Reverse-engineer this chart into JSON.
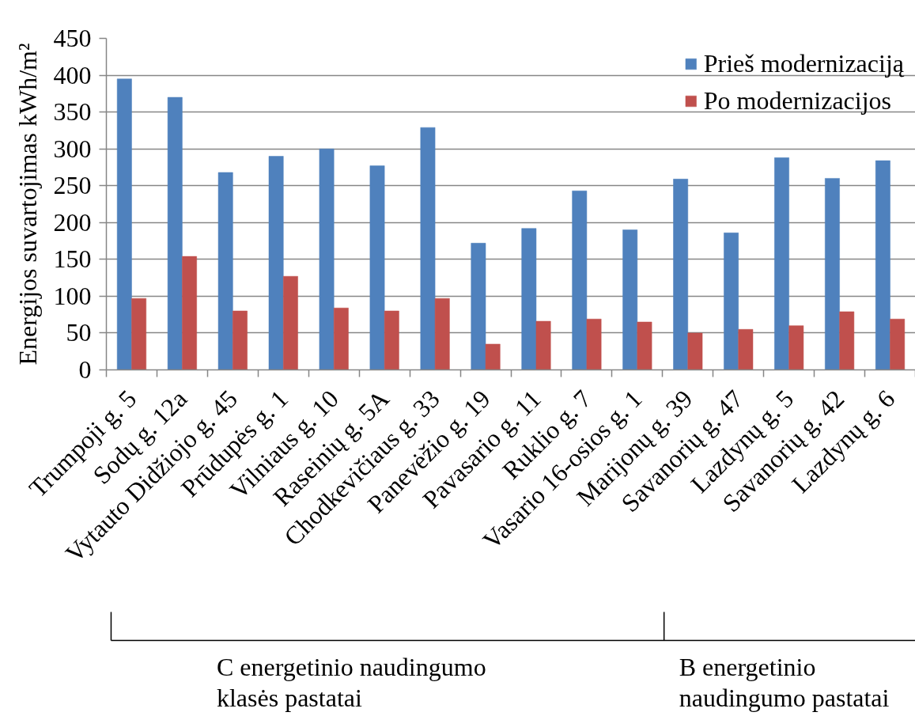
{
  "chart_data": {
    "type": "bar",
    "categories": [
      "Trumpoji g. 5",
      "Sodų g. 12a",
      "Vytauto Didžiojo g. 45",
      "Prūdupės g. 1",
      "Vilniaus g. 10",
      "Raseinių g. 5A",
      "Chodkevičiaus g. 33",
      "Panevėžio g. 19",
      "Pavasario g. 11",
      "Ruklio g. 7",
      "Vasario 16-osios g. 1",
      "Marijonų g. 39",
      "Savanorių g. 47",
      "Lazdynų g. 5",
      "Savanorių g. 42",
      "Lazdynų g. 6"
    ],
    "series": [
      {
        "name": "Prieš modernizaciją",
        "color": "#4f81bd",
        "values": [
          395,
          370,
          268,
          290,
          300,
          277,
          329,
          172,
          192,
          243,
          190,
          259,
          186,
          288,
          260,
          284
        ]
      },
      {
        "name": "Po modernizacijos",
        "color": "#c0504d",
        "values": [
          97,
          154,
          80,
          127,
          84,
          80,
          97,
          35,
          66,
          69,
          65,
          50,
          55,
          60,
          79,
          69
        ]
      }
    ],
    "ylabel": "Energijos suvartojimas kWh/m²",
    "ylim": [
      0,
      450
    ],
    "yticks": [
      0,
      50,
      100,
      150,
      200,
      250,
      300,
      350,
      400,
      450
    ],
    "grid": "y",
    "legend": "top right",
    "annotations": [
      "C energetinio naudingumo klasės pastatai",
      "B energetinio naudingumo pastatai"
    ]
  }
}
